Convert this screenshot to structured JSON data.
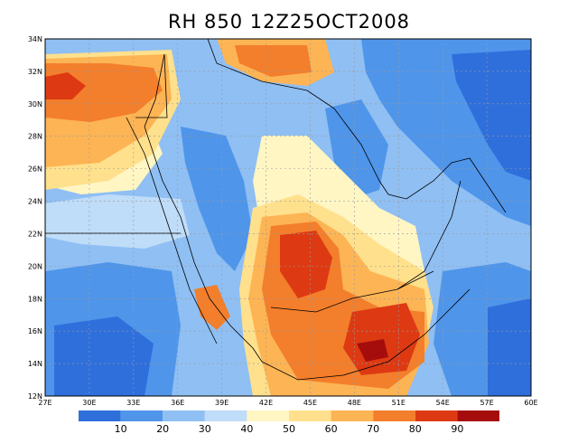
{
  "title": "RH  850  12Z25OCT2008",
  "colors": {
    "palette": [
      "#2f6fdc",
      "#4f95ea",
      "#8fbff3",
      "#bfdcf8",
      "#fff6c4",
      "#ffe08c",
      "#fdb454",
      "#f37e2b",
      "#dd3a13",
      "#a50d0d"
    ],
    "land_boundary": "#000000",
    "grid": "#9a9a9a"
  },
  "axes": {
    "lat_labels": [
      "34N",
      "32N",
      "30N",
      "28N",
      "26N",
      "24N",
      "22N",
      "20N",
      "18N",
      "16N",
      "14N",
      "12N"
    ],
    "lon_labels": [
      "27E",
      "30E",
      "33E",
      "36E",
      "39E",
      "42E",
      "45E",
      "48E",
      "51E",
      "54E",
      "57E",
      "60E"
    ]
  },
  "colorbar": {
    "labels": [
      "10",
      "20",
      "30",
      "40",
      "50",
      "60",
      "70",
      "80",
      "90"
    ]
  },
  "field": {
    "variable": "RH",
    "level": "850",
    "time": "12Z25OCT2008",
    "lon_range": [
      27,
      60
    ],
    "lat_range": [
      12,
      34
    ],
    "levels": [
      10,
      20,
      30,
      40,
      50,
      60,
      70,
      80,
      90
    ]
  }
}
